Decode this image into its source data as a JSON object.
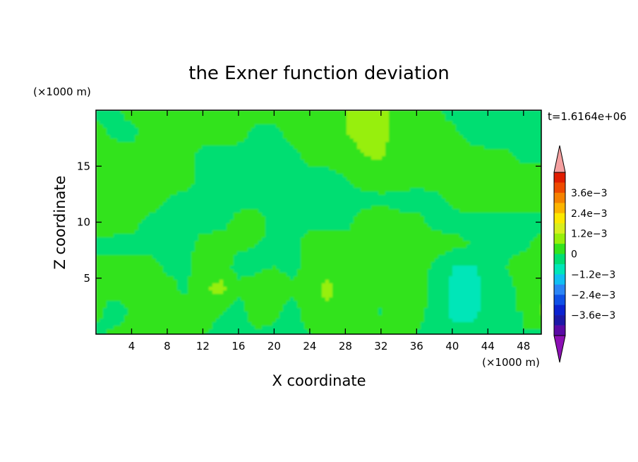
{
  "chart_data": {
    "type": "heatmap",
    "title": "the Exner function deviation",
    "xlabel": "X coordinate",
    "ylabel": "Z coordinate",
    "x_unit": "(×1000 m)",
    "y_unit": "(×1000 m)",
    "time_label": "t=1.6164e+06",
    "xlim": [
      0,
      50
    ],
    "ylim": [
      0,
      20
    ],
    "x_ticks": [
      4,
      8,
      12,
      16,
      20,
      24,
      28,
      32,
      36,
      40,
      44,
      48
    ],
    "y_ticks": [
      5,
      10,
      15
    ],
    "colorbar": {
      "levels": [
        -0.0042,
        -0.0036,
        -0.003,
        -0.0024,
        -0.0018,
        -0.0012,
        -0.0006,
        0,
        0.0006,
        0.0012,
        0.0018,
        0.0024,
        0.003,
        0.0036,
        0.0042
      ],
      "colors": [
        "#5a0aa5",
        "#1c18a6",
        "#0b22d0",
        "#0f50e6",
        "#2b85f5",
        "#11bff2",
        "#00e6b8",
        "#00de72",
        "#33e31c",
        "#97ef0a",
        "#d8ee1e",
        "#fce800",
        "#fcb400",
        "#f58200",
        "#ee4a00",
        "#e01c00"
      ],
      "over_color": "#f5a0a0",
      "under_color": "#8c10b4",
      "labels": [
        "3.6e−3",
        "2.4e−3",
        "1.2e−3",
        "0",
        "−1.2e−3",
        "−2.4e−3",
        "−3.6e−3"
      ]
    },
    "field": {
      "x_range": [
        0,
        50
      ],
      "z_range": [
        0,
        20
      ],
      "nx": 26,
      "nz": 11,
      "values_e3": [
        [
          -0.3,
          0.2,
          0.4,
          0.3,
          0.3,
          0.2,
          0.1,
          -0.4,
          -0.3,
          -0.1,
          -0.2,
          -0.2,
          0.0,
          0.3,
          0.2,
          0.5,
          0.3,
          0.2,
          0.0,
          -0.3,
          -0.5,
          -0.4,
          -0.3,
          -0.1,
          0.0,
          -0.2
        ],
        [
          0.3,
          -0.5,
          0.1,
          0.4,
          0.3,
          0.3,
          0.5,
          0.1,
          -0.3,
          0.4,
          0.2,
          -0.3,
          0.3,
          0.4,
          0.5,
          0.3,
          -0.1,
          0.5,
          0.2,
          -0.2,
          -0.7,
          -0.8,
          -0.4,
          0.0,
          0.0,
          0.7
        ],
        [
          0.3,
          0.4,
          0.3,
          0.3,
          0.2,
          -0.1,
          0.5,
          0.8,
          0.2,
          0.2,
          0.4,
          0.2,
          0.3,
          0.8,
          0.2,
          0.4,
          0.3,
          0.3,
          0.3,
          -0.2,
          -0.7,
          -0.8,
          -0.5,
          -0.2,
          0.2,
          0.3
        ],
        [
          0.3,
          0.3,
          0.3,
          0.2,
          -0.1,
          -0.1,
          0.2,
          0.3,
          -0.2,
          -0.1,
          0.0,
          -0.2,
          0.2,
          0.3,
          0.3,
          0.2,
          0.3,
          0.3,
          0.3,
          -0.1,
          -0.6,
          -0.7,
          -0.4,
          0.0,
          0.2,
          0.3
        ],
        [
          -0.2,
          -0.2,
          -0.2,
          -0.2,
          -0.2,
          -0.2,
          0.2,
          0.3,
          0.1,
          0.0,
          -0.1,
          -0.2,
          0.3,
          0.3,
          0.3,
          0.2,
          0.3,
          0.3,
          0.3,
          0.3,
          0.2,
          0.0,
          -0.1,
          -0.1,
          -0.1,
          0.2
        ],
        [
          0.3,
          0.3,
          0.2,
          -0.2,
          -0.2,
          -0.2,
          -0.2,
          -0.2,
          0.2,
          0.3,
          -0.2,
          -0.2,
          -0.2,
          -0.2,
          -0.2,
          0.3,
          0.3,
          0.2,
          0.2,
          -0.2,
          -0.2,
          -0.2,
          -0.2,
          -0.2,
          -0.2,
          -0.2
        ],
        [
          0.3,
          0.3,
          0.3,
          0.3,
          0.0,
          -0.2,
          -0.2,
          -0.3,
          -0.2,
          -0.2,
          -0.3,
          -0.2,
          -0.2,
          -0.2,
          -0.2,
          -0.2,
          -0.1,
          -0.2,
          -0.2,
          -0.2,
          0.1,
          0.3,
          0.3,
          0.3,
          0.3,
          0.3
        ],
        [
          0.3,
          0.3,
          0.3,
          0.3,
          0.3,
          0.3,
          -0.2,
          -0.2,
          -0.3,
          -0.3,
          -0.3,
          -0.2,
          -0.2,
          -0.2,
          0.0,
          0.3,
          0.3,
          0.3,
          0.2,
          0.3,
          0.3,
          0.3,
          0.3,
          0.3,
          0.3,
          0.3
        ],
        [
          0.4,
          0.4,
          0.3,
          0.3,
          0.3,
          0.3,
          -0.2,
          -0.2,
          -0.3,
          -0.3,
          -0.2,
          -0.2,
          0.2,
          0.3,
          0.3,
          0.6,
          0.7,
          0.3,
          0.3,
          0.3,
          0.3,
          0.3,
          0.2,
          0.2,
          -0.2,
          -0.2
        ],
        [
          0.3,
          -0.2,
          -0.2,
          0.3,
          0.3,
          0.3,
          0.3,
          0.3,
          0.3,
          -0.2,
          -0.2,
          0.3,
          0.3,
          0.3,
          0.6,
          0.8,
          0.8,
          0.3,
          0.3,
          0.3,
          0.2,
          -0.3,
          -0.5,
          -0.5,
          -0.5,
          -0.4
        ],
        [
          -0.2,
          -0.2,
          0.3,
          0.3,
          0.3,
          0.3,
          0.3,
          0.3,
          0.3,
          0.3,
          0.3,
          0.3,
          0.3,
          0.3,
          0.6,
          1.0,
          0.8,
          0.3,
          0.3,
          0.2,
          -0.3,
          -0.5,
          -0.5,
          -0.5,
          -0.5,
          -0.4
        ]
      ]
    }
  }
}
